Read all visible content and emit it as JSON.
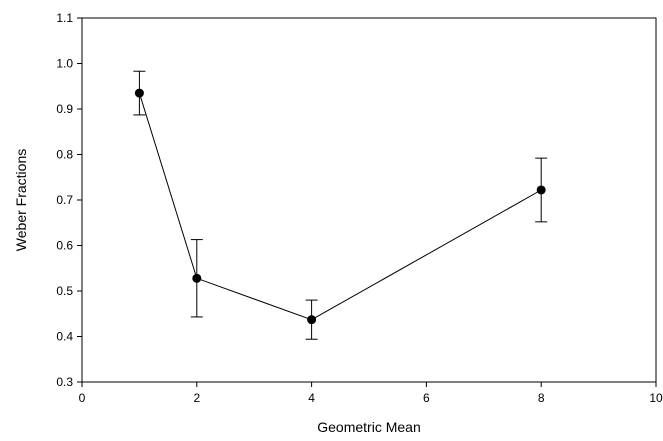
{
  "chart_data": {
    "type": "line",
    "title": "",
    "xlabel": "Geometric Mean",
    "ylabel": "Weber Fractions",
    "xlim": [
      0,
      10
    ],
    "ylim": [
      0.3,
      1.1
    ],
    "x_ticks": [
      0,
      2,
      4,
      6,
      8,
      10
    ],
    "x_tick_labels": [
      "0",
      "2",
      "4",
      "6",
      "8",
      "10"
    ],
    "y_ticks": [
      0.3,
      0.4,
      0.5,
      0.6,
      0.7,
      0.8,
      0.9,
      1.0,
      1.1
    ],
    "y_tick_labels": [
      "0.3",
      "0.4",
      "0.5",
      "0.6",
      "0.7",
      "0.8",
      "0.9",
      "1.0",
      "1.1"
    ],
    "grid": false,
    "legend": "none",
    "series": [
      {
        "x": [
          1,
          2,
          4,
          8
        ],
        "y": [
          0.935,
          0.528,
          0.437,
          0.722
        ],
        "error": [
          0.048,
          0.085,
          0.043,
          0.07
        ],
        "color": "#000000",
        "marker": "circle"
      }
    ]
  }
}
